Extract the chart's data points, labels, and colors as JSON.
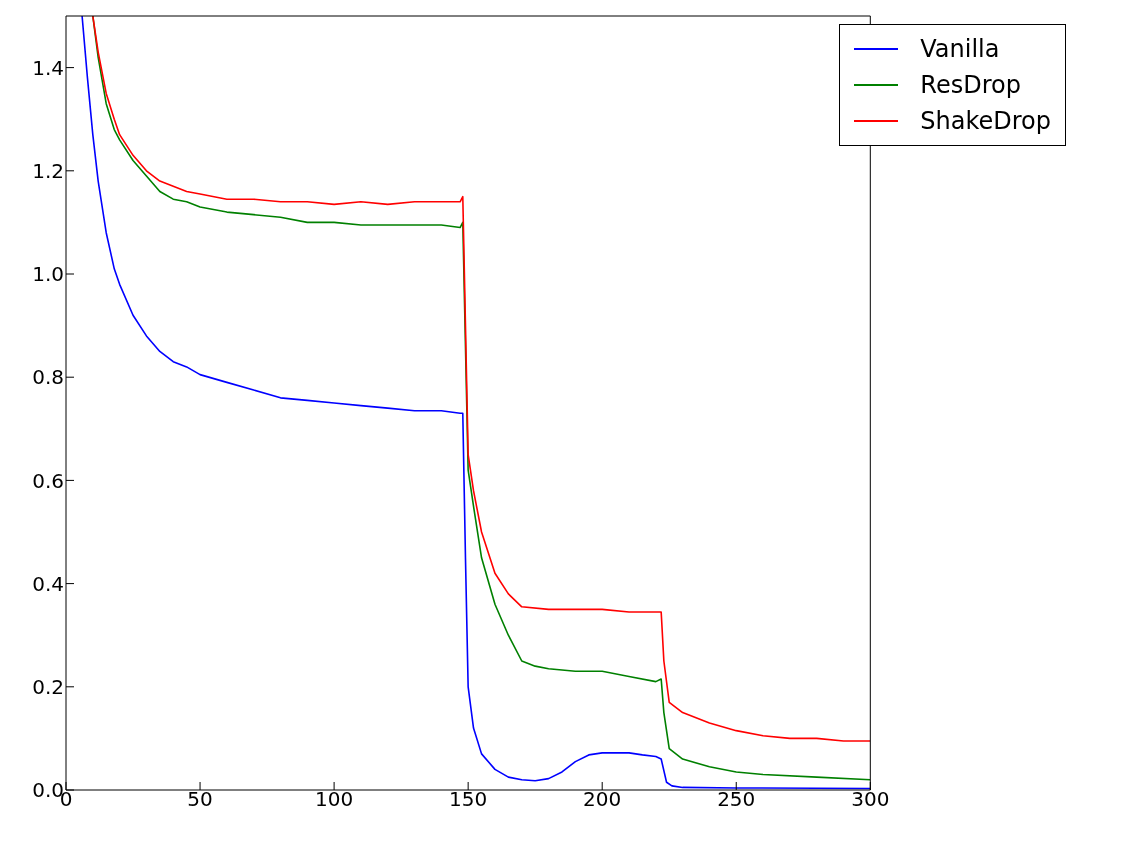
{
  "chart_data": {
    "type": "line",
    "xlim": [
      0,
      300
    ],
    "xticks": [
      0,
      50,
      100,
      150,
      200,
      250,
      300
    ],
    "ylim": [
      0,
      1.5
    ],
    "yticks": [
      {
        "value": 0,
        "label": "0.0"
      },
      0.2,
      0.4,
      0.6,
      0.8,
      {
        "value": 1,
        "label": "1.0"
      },
      1.2,
      1.4
    ],
    "grid": false,
    "legend": "top right",
    "marker": "none",
    "line_style": "solid",
    "series": [
      {
        "name": "Vanilla",
        "color": "#0000ff",
        "x": [
          6,
          8,
          10,
          12,
          15,
          18,
          20,
          25,
          30,
          35,
          40,
          45,
          50,
          60,
          70,
          80,
          90,
          100,
          110,
          120,
          130,
          140,
          147,
          148,
          149,
          150,
          152,
          155,
          160,
          165,
          170,
          175,
          180,
          185,
          190,
          195,
          200,
          205,
          210,
          215,
          220,
          222,
          224,
          226,
          230,
          250,
          300
        ],
        "values": [
          1.5,
          1.38,
          1.27,
          1.18,
          1.08,
          1.01,
          0.98,
          0.92,
          0.88,
          0.85,
          0.83,
          0.82,
          0.805,
          0.79,
          0.775,
          0.76,
          0.755,
          0.75,
          0.745,
          0.74,
          0.735,
          0.735,
          0.73,
          0.73,
          0.45,
          0.2,
          0.12,
          0.07,
          0.04,
          0.025,
          0.02,
          0.018,
          0.022,
          0.035,
          0.055,
          0.068,
          0.072,
          0.072,
          0.072,
          0.068,
          0.065,
          0.06,
          0.015,
          0.008,
          0.005,
          0.004,
          0.003
        ]
      },
      {
        "name": "ResDrop",
        "color": "#008000",
        "x": [
          10,
          12,
          15,
          18,
          20,
          25,
          30,
          35,
          40,
          45,
          50,
          60,
          70,
          80,
          90,
          100,
          110,
          120,
          130,
          140,
          147,
          148,
          150,
          152,
          155,
          160,
          165,
          170,
          175,
          180,
          190,
          200,
          210,
          220,
          222,
          223,
          225,
          230,
          240,
          250,
          260,
          280,
          300
        ],
        "values": [
          1.5,
          1.42,
          1.33,
          1.28,
          1.26,
          1.22,
          1.19,
          1.16,
          1.145,
          1.14,
          1.13,
          1.12,
          1.115,
          1.11,
          1.1,
          1.1,
          1.095,
          1.095,
          1.095,
          1.095,
          1.09,
          1.1,
          0.62,
          0.55,
          0.45,
          0.36,
          0.3,
          0.25,
          0.24,
          0.235,
          0.23,
          0.23,
          0.22,
          0.21,
          0.215,
          0.15,
          0.08,
          0.06,
          0.045,
          0.035,
          0.03,
          0.025,
          0.02
        ]
      },
      {
        "name": "ShakeDrop",
        "color": "#ff0000",
        "x": [
          10,
          12,
          15,
          18,
          20,
          25,
          30,
          35,
          40,
          45,
          50,
          60,
          70,
          80,
          90,
          100,
          110,
          120,
          130,
          140,
          147,
          148,
          149,
          150,
          152,
          155,
          160,
          165,
          170,
          180,
          190,
          200,
          210,
          220,
          222,
          223,
          225,
          230,
          240,
          250,
          260,
          270,
          280,
          290,
          300
        ],
        "values": [
          1.5,
          1.43,
          1.35,
          1.3,
          1.27,
          1.23,
          1.2,
          1.18,
          1.17,
          1.16,
          1.155,
          1.145,
          1.145,
          1.14,
          1.14,
          1.135,
          1.14,
          1.135,
          1.14,
          1.14,
          1.14,
          1.15,
          0.9,
          0.65,
          0.58,
          0.5,
          0.42,
          0.38,
          0.355,
          0.35,
          0.35,
          0.35,
          0.345,
          0.345,
          0.345,
          0.25,
          0.17,
          0.15,
          0.13,
          0.115,
          0.105,
          0.1,
          0.1,
          0.095,
          0.095
        ]
      }
    ]
  }
}
